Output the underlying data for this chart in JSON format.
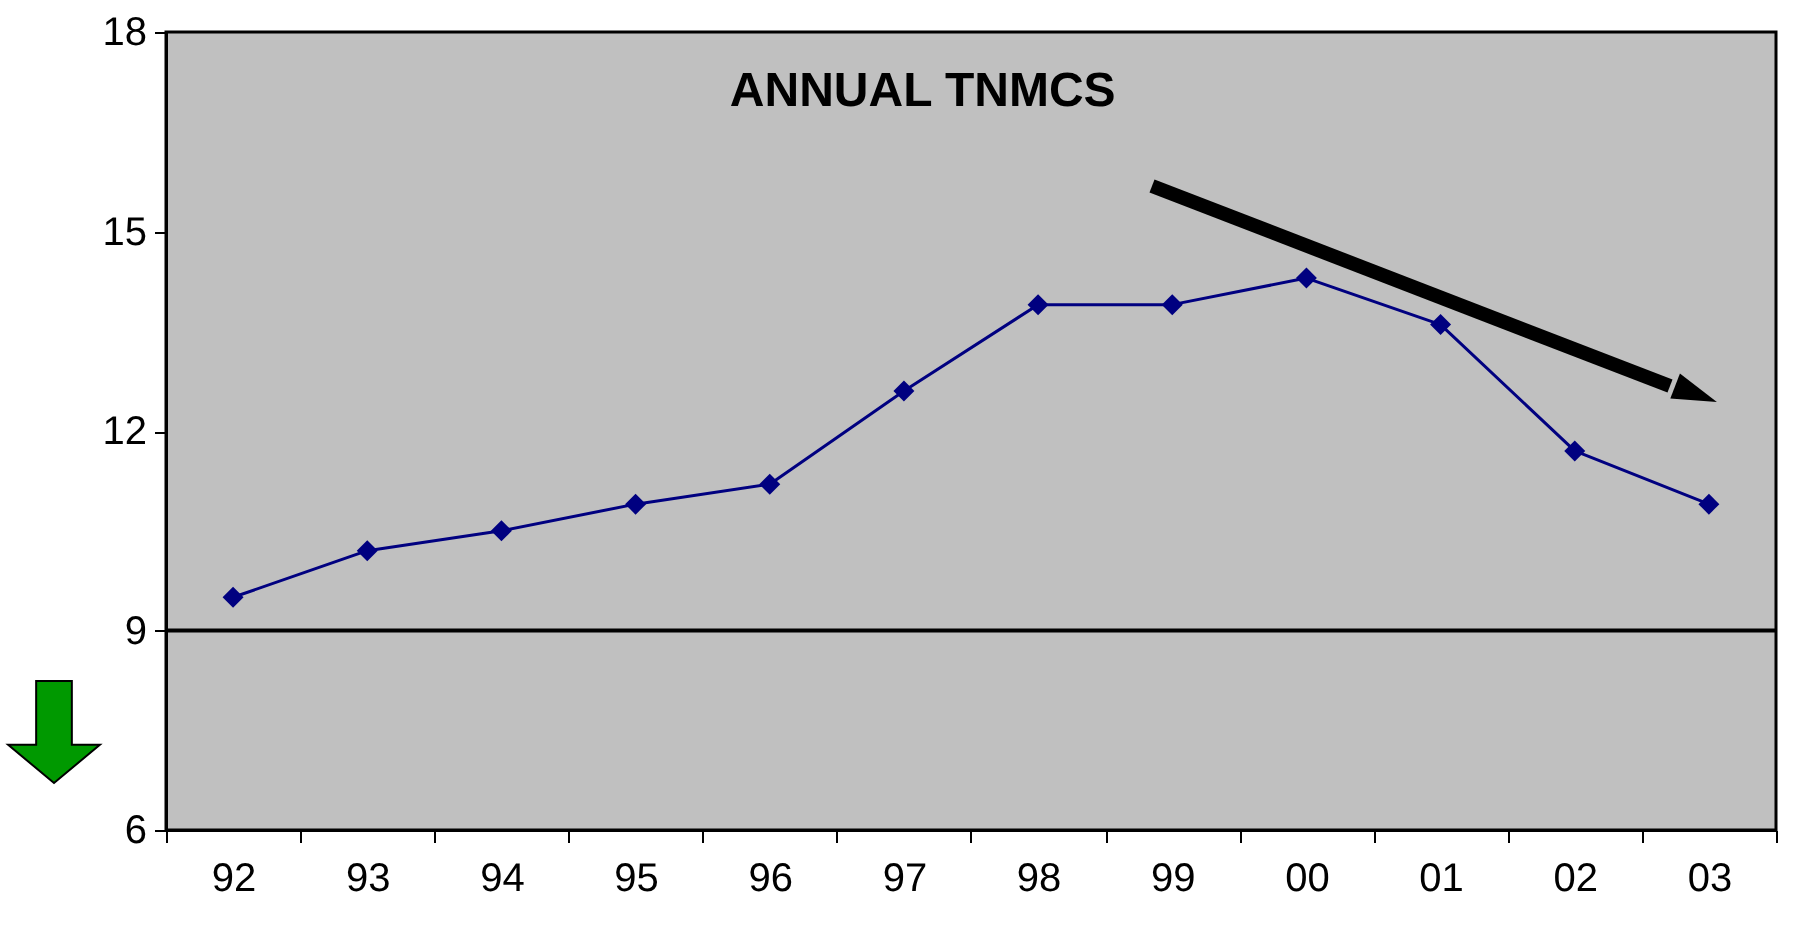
{
  "chart_data": {
    "type": "line",
    "title": "ANNUAL TNMCS",
    "categories": [
      "92",
      "93",
      "94",
      "95",
      "96",
      "97",
      "98",
      "99",
      "00",
      "01",
      "02",
      "03"
    ],
    "series": [
      {
        "color": "#000080",
        "values": [
          9.5,
          10.2,
          10.5,
          10.9,
          11.2,
          12.6,
          13.9,
          13.9,
          14.3,
          13.6,
          11.7,
          10.9
        ]
      }
    ],
    "ylim": [
      6,
      18
    ],
    "yticks": [
      6,
      9,
      12,
      15,
      18
    ],
    "grid": false,
    "marker": "diamond",
    "line_style": "solid",
    "ref_lines": [
      {
        "axis": "y",
        "value": 9,
        "color": "#000000"
      }
    ]
  }
}
